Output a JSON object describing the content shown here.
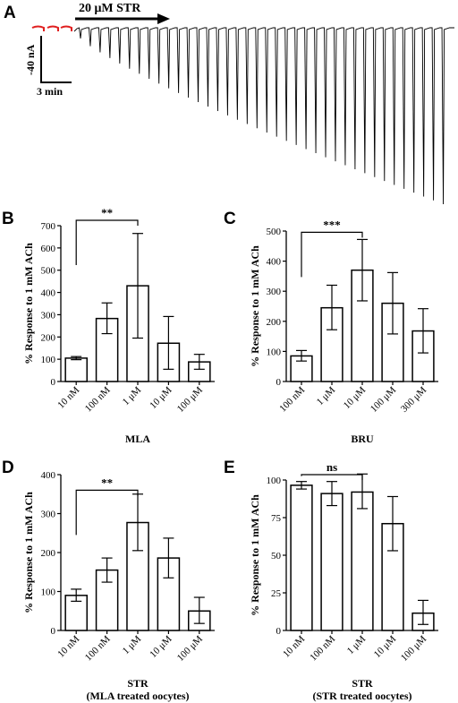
{
  "panel_a": {
    "letter": "A",
    "treatment_label": "20 μM STR",
    "scale_current": "-40 nA",
    "scale_time": "3 min",
    "colors": {
      "baseline_marks": "#e02020",
      "trace": "#000000"
    },
    "n_responses": 38
  },
  "chart_data": [
    {
      "panel": "B",
      "type": "bar",
      "categories": [
        "10 nM",
        "100 nM",
        "1 μM",
        "10 μM",
        "100 μM"
      ],
      "values": [
        105,
        283,
        430,
        172,
        88
      ],
      "error_low": [
        98,
        215,
        195,
        55,
        55
      ],
      "error_high": [
        112,
        353,
        665,
        292,
        122
      ],
      "xlabel": "MLA",
      "xlabel2": "",
      "ylabel": "% Response to 1 mM ACh",
      "ylim": [
        0,
        700
      ],
      "yticks": [
        0,
        100,
        200,
        300,
        400,
        500,
        600,
        700
      ],
      "significance": {
        "from": 0,
        "to": 2,
        "label": "**"
      }
    },
    {
      "panel": "C",
      "type": "bar",
      "categories": [
        "100 nM",
        "1 μM",
        "10 μM",
        "100 μM",
        "300 μM"
      ],
      "values": [
        85,
        245,
        370,
        260,
        168
      ],
      "error_low": [
        68,
        172,
        268,
        158,
        95
      ],
      "error_high": [
        103,
        320,
        472,
        362,
        242
      ],
      "xlabel": "BRU",
      "xlabel2": "",
      "ylabel": "% Response to 1 mM ACh",
      "ylim": [
        0,
        500
      ],
      "yticks": [
        0,
        100,
        200,
        300,
        400,
        500
      ],
      "significance": {
        "from": 0,
        "to": 2,
        "label": "***"
      }
    },
    {
      "panel": "D",
      "type": "bar",
      "categories": [
        "10 nM",
        "100 nM",
        "1 μM",
        "10 μM",
        "100 μM"
      ],
      "values": [
        90,
        155,
        277,
        186,
        50
      ],
      "error_low": [
        75,
        124,
        205,
        135,
        18
      ],
      "error_high": [
        106,
        186,
        350,
        237,
        85
      ],
      "xlabel": "STR",
      "xlabel2": "(MLA treated oocytes)",
      "ylabel": "% Response to 1 mM ACh",
      "ylim": [
        0,
        400
      ],
      "yticks": [
        0,
        100,
        200,
        300,
        400
      ],
      "significance": {
        "from": 0,
        "to": 2,
        "label": "**"
      }
    },
    {
      "panel": "E",
      "type": "bar",
      "categories": [
        "10 nM",
        "100 nM",
        "1 μM",
        "10 μM",
        "100 μM"
      ],
      "values": [
        96.5,
        91,
        92,
        71,
        11.5
      ],
      "error_low": [
        94,
        83,
        81,
        53,
        4
      ],
      "error_high": [
        99,
        99,
        104,
        89,
        20
      ],
      "xlabel": "STR",
      "xlabel2": "(STR treated oocytes)",
      "ylabel": "% Response to 1 mM ACh",
      "ylim": [
        0,
        100
      ],
      "yticks": [
        0,
        25,
        50,
        75,
        100
      ],
      "significance": {
        "from": 0,
        "to": 2,
        "label": "ns"
      }
    }
  ]
}
